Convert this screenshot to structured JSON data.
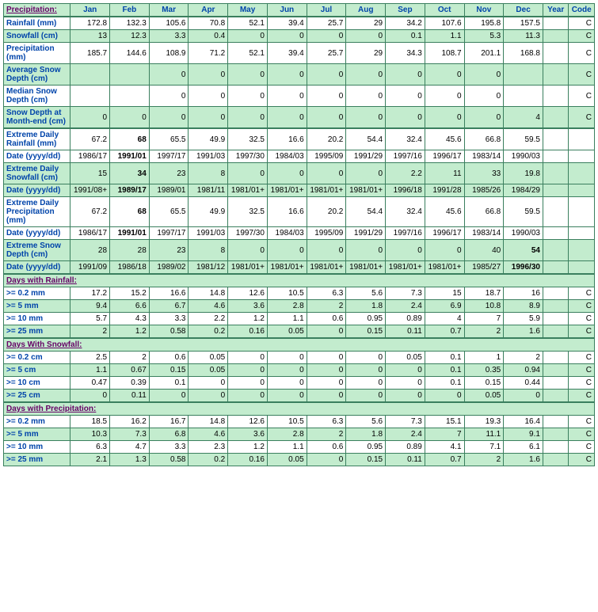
{
  "columns": [
    "Jan",
    "Feb",
    "Mar",
    "Apr",
    "May",
    "Jun",
    "Jul",
    "Aug",
    "Sep",
    "Oct",
    "Nov",
    "Dec",
    "Year",
    "Code"
  ],
  "corner": "Precipitation:",
  "colors": {
    "header_bg": "#c3ecce",
    "header_fg": "#0044aa",
    "section_fg": "#660066",
    "border": "#3a7f5e",
    "row_alt_bg": "#c3ecce",
    "row_bg": "#ffffff"
  },
  "rows": [
    {
      "label": "Rainfall (mm)",
      "bg": "w",
      "vals": [
        "172.8",
        "132.3",
        "105.6",
        "70.8",
        "52.1",
        "39.4",
        "25.7",
        "29",
        "34.2",
        "107.6",
        "195.8",
        "157.5",
        "",
        "C"
      ]
    },
    {
      "label": "Snowfall (cm)",
      "bg": "g",
      "vals": [
        "13",
        "12.3",
        "3.3",
        "0.4",
        "0",
        "0",
        "0",
        "0",
        "0.1",
        "1.1",
        "5.3",
        "11.3",
        "",
        "C"
      ]
    },
    {
      "label": "Precipitation (mm)",
      "bg": "w",
      "vals": [
        "185.7",
        "144.6",
        "108.9",
        "71.2",
        "52.1",
        "39.4",
        "25.7",
        "29",
        "34.3",
        "108.7",
        "201.1",
        "168.8",
        "",
        "C"
      ]
    },
    {
      "label": "Average Snow Depth (cm)",
      "bg": "g",
      "vals": [
        "",
        "",
        "0",
        "0",
        "0",
        "0",
        "0",
        "0",
        "0",
        "0",
        "0",
        "",
        "",
        "C"
      ]
    },
    {
      "label": "Median Snow Depth (cm)",
      "bg": "w",
      "vals": [
        "",
        "",
        "0",
        "0",
        "0",
        "0",
        "0",
        "0",
        "0",
        "0",
        "0",
        "",
        "",
        "C"
      ]
    },
    {
      "label": "Snow Depth at Month-end (cm)",
      "bg": "g",
      "thick": true,
      "vals": [
        "0",
        "0",
        "0",
        "0",
        "0",
        "0",
        "0",
        "0",
        "0",
        "0",
        "0",
        "4",
        "",
        "C"
      ]
    },
    {
      "label": "Extreme Daily Rainfall (mm)",
      "bg": "w",
      "vals": [
        "67.2",
        "68",
        "65.5",
        "49.9",
        "32.5",
        "16.6",
        "20.2",
        "54.4",
        "32.4",
        "45.6",
        "66.8",
        "59.5",
        "",
        ""
      ],
      "bold": [
        1
      ]
    },
    {
      "label": "Date (yyyy/dd)",
      "bg": "w",
      "vals": [
        "1986/17",
        "1991/01",
        "1997/17",
        "1991/03",
        "1997/30",
        "1984/03",
        "1995/09",
        "1991/29",
        "1997/16",
        "1996/17",
        "1983/14",
        "1990/03",
        "",
        ""
      ],
      "bold": [
        1
      ]
    },
    {
      "label": "Extreme Daily Snowfall (cm)",
      "bg": "g",
      "vals": [
        "15",
        "34",
        "23",
        "8",
        "0",
        "0",
        "0",
        "0",
        "2.2",
        "11",
        "33",
        "19.8",
        "",
        ""
      ],
      "bold": [
        1
      ]
    },
    {
      "label": "Date (yyyy/dd)",
      "bg": "g",
      "vals": [
        "1991/08+",
        "1989/17",
        "1989/01",
        "1981/11",
        "1981/01+",
        "1981/01+",
        "1981/01+",
        "1981/01+",
        "1996/18",
        "1991/28",
        "1985/26",
        "1984/29",
        "",
        ""
      ],
      "bold": [
        1
      ]
    },
    {
      "label": "Extreme Daily Precipitation (mm)",
      "bg": "w",
      "vals": [
        "67.2",
        "68",
        "65.5",
        "49.9",
        "32.5",
        "16.6",
        "20.2",
        "54.4",
        "32.4",
        "45.6",
        "66.8",
        "59.5",
        "",
        ""
      ],
      "bold": [
        1
      ]
    },
    {
      "label": "Date (yyyy/dd)",
      "bg": "w",
      "vals": [
        "1986/17",
        "1991/01",
        "1997/17",
        "1991/03",
        "1997/30",
        "1984/03",
        "1995/09",
        "1991/29",
        "1997/16",
        "1996/17",
        "1983/14",
        "1990/03",
        "",
        ""
      ],
      "bold": [
        1
      ]
    },
    {
      "label": "Extreme Snow Depth (cm)",
      "bg": "g",
      "vals": [
        "28",
        "28",
        "23",
        "8",
        "0",
        "0",
        "0",
        "0",
        "0",
        "0",
        "40",
        "54",
        "",
        ""
      ],
      "bold": [
        11
      ]
    },
    {
      "label": "Date (yyyy/dd)",
      "bg": "g",
      "thick": true,
      "vals": [
        "1991/09",
        "1986/18",
        "1989/02",
        "1981/12",
        "1981/01+",
        "1981/01+",
        "1981/01+",
        "1981/01+",
        "1981/01+",
        "1981/01+",
        "1985/27",
        "1996/30",
        "",
        ""
      ],
      "bold": [
        11
      ]
    }
  ],
  "sections": [
    {
      "title": "Days with Rainfall:",
      "rows": [
        {
          "label": ">= 0.2 mm",
          "bg": "w",
          "vals": [
            "17.2",
            "15.2",
            "16.6",
            "14.8",
            "12.6",
            "10.5",
            "6.3",
            "5.6",
            "7.3",
            "15",
            "18.7",
            "16",
            "",
            "C"
          ]
        },
        {
          "label": ">= 5 mm",
          "bg": "g",
          "vals": [
            "9.4",
            "6.6",
            "6.7",
            "4.6",
            "3.6",
            "2.8",
            "2",
            "1.8",
            "2.4",
            "6.9",
            "10.8",
            "8.9",
            "",
            "C"
          ]
        },
        {
          "label": ">= 10 mm",
          "bg": "w",
          "vals": [
            "5.7",
            "4.3",
            "3.3",
            "2.2",
            "1.2",
            "1.1",
            "0.6",
            "0.95",
            "0.89",
            "4",
            "7",
            "5.9",
            "",
            "C"
          ]
        },
        {
          "label": ">= 25 mm",
          "bg": "g",
          "thick": true,
          "vals": [
            "2",
            "1.2",
            "0.58",
            "0.2",
            "0.16",
            "0.05",
            "0",
            "0.15",
            "0.11",
            "0.7",
            "2",
            "1.6",
            "",
            "C"
          ]
        }
      ]
    },
    {
      "title": "Days With Snowfall:",
      "rows": [
        {
          "label": ">= 0.2 cm",
          "bg": "w",
          "vals": [
            "2.5",
            "2",
            "0.6",
            "0.05",
            "0",
            "0",
            "0",
            "0",
            "0.05",
            "0.1",
            "1",
            "2",
            "",
            "C"
          ]
        },
        {
          "label": ">= 5 cm",
          "bg": "g",
          "vals": [
            "1.1",
            "0.67",
            "0.15",
            "0.05",
            "0",
            "0",
            "0",
            "0",
            "0",
            "0.1",
            "0.35",
            "0.94",
            "",
            "C"
          ]
        },
        {
          "label": ">= 10 cm",
          "bg": "w",
          "vals": [
            "0.47",
            "0.39",
            "0.1",
            "0",
            "0",
            "0",
            "0",
            "0",
            "0",
            "0.1",
            "0.15",
            "0.44",
            "",
            "C"
          ]
        },
        {
          "label": ">= 25 cm",
          "bg": "g",
          "thick": true,
          "vals": [
            "0",
            "0.11",
            "0",
            "0",
            "0",
            "0",
            "0",
            "0",
            "0",
            "0",
            "0.05",
            "0",
            "",
            "C"
          ]
        }
      ]
    },
    {
      "title": "Days with Precipitation:",
      "rows": [
        {
          "label": ">= 0.2 mm",
          "bg": "w",
          "vals": [
            "18.5",
            "16.2",
            "16.7",
            "14.8",
            "12.6",
            "10.5",
            "6.3",
            "5.6",
            "7.3",
            "15.1",
            "19.3",
            "16.4",
            "",
            "C"
          ]
        },
        {
          "label": ">= 5 mm",
          "bg": "g",
          "vals": [
            "10.3",
            "7.3",
            "6.8",
            "4.6",
            "3.6",
            "2.8",
            "2",
            "1.8",
            "2.4",
            "7",
            "11.1",
            "9.1",
            "",
            "C"
          ]
        },
        {
          "label": ">= 10 mm",
          "bg": "w",
          "vals": [
            "6.3",
            "4.7",
            "3.3",
            "2.3",
            "1.2",
            "1.1",
            "0.6",
            "0.95",
            "0.89",
            "4.1",
            "7.1",
            "6.1",
            "",
            "C"
          ]
        },
        {
          "label": ">= 25 mm",
          "bg": "g",
          "vals": [
            "2.1",
            "1.3",
            "0.58",
            "0.2",
            "0.16",
            "0.05",
            "0",
            "0.15",
            "0.11",
            "0.7",
            "2",
            "1.6",
            "",
            "C"
          ]
        }
      ]
    }
  ]
}
